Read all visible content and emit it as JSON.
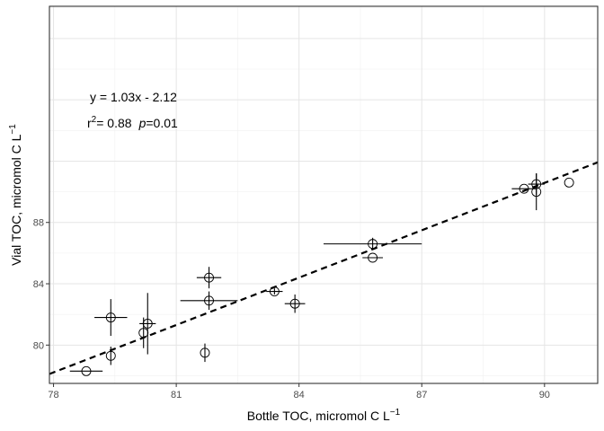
{
  "chart_data": {
    "type": "scatter",
    "xlabel": "Bottle TOC, micromol C L",
    "xlabel_sup": "−1",
    "ylabel": "Vial TOC, micromol C L",
    "ylabel_sup": "−1",
    "xlim": [
      77.9,
      91.3
    ],
    "ylim": [
      77.5,
      102.1
    ],
    "xticks": [
      78,
      81,
      84,
      87,
      90
    ],
    "yticks": [
      80,
      84,
      88
    ],
    "grid": true,
    "equation": "y = 1.03x - 2.12",
    "r2_prefix": "r",
    "r2_sup": "2",
    "r2_value": "= 0.88",
    "p_symbol": "p",
    "p_value": "=0.01",
    "fit": {
      "slope": 1.03,
      "intercept": -2.12,
      "style": "dashed"
    },
    "points": [
      {
        "x": 78.8,
        "y": 78.3,
        "xerr": 0.4,
        "yerr": 0
      },
      {
        "x": 79.4,
        "y": 79.3,
        "xerr": 0,
        "yerr": 0.6
      },
      {
        "x": 79.4,
        "y": 81.8,
        "xerr": 0.4,
        "yerr": 1.2
      },
      {
        "x": 80.2,
        "y": 80.8,
        "xerr": 0,
        "yerr": 1.0
      },
      {
        "x": 80.3,
        "y": 81.4,
        "xerr": 0.2,
        "yerr": 2.0
      },
      {
        "x": 81.7,
        "y": 79.5,
        "xerr": 0,
        "yerr": 0.6
      },
      {
        "x": 81.8,
        "y": 84.4,
        "xerr": 0.3,
        "yerr": 0.7
      },
      {
        "x": 81.8,
        "y": 82.9,
        "xerr": 0.7,
        "yerr": 0.6
      },
      {
        "x": 83.4,
        "y": 83.5,
        "xerr": 0.2,
        "yerr": 0.2
      },
      {
        "x": 83.9,
        "y": 82.7,
        "xerr": 0.25,
        "yerr": 0.6
      },
      {
        "x": 85.8,
        "y": 85.7,
        "xerr": 0.25,
        "yerr": 0
      },
      {
        "x": 85.8,
        "y": 86.6,
        "xerr": 1.2,
        "yerr": 0.4
      },
      {
        "x": 89.5,
        "y": 90.2,
        "xerr": 0.3,
        "yerr": 0
      },
      {
        "x": 89.8,
        "y": 90.0,
        "xerr": 0,
        "yerr": 1.2
      },
      {
        "x": 89.8,
        "y": 90.5,
        "xerr": 0.2,
        "yerr": 0.7
      },
      {
        "x": 90.6,
        "y": 90.6,
        "xerr": 0,
        "yerr": 0
      }
    ]
  }
}
